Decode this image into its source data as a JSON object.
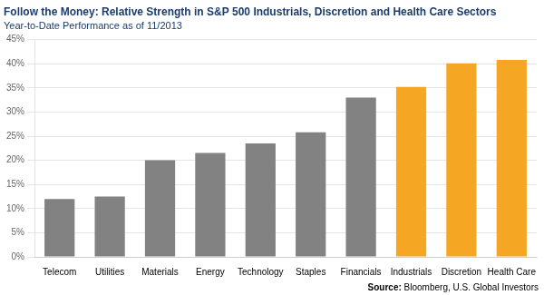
{
  "chart_data": {
    "type": "bar",
    "title": "Follow the Money: Relative Strength in S&P 500 Industrials, Discretion and Health Care Sectors",
    "subtitle": "Year-to-Date Performance as of 11/2013",
    "source": "Source: Bloomberg, U.S. Global Investors",
    "categories": [
      "Telecom",
      "Utilities",
      "Materials",
      "Energy",
      "Technology",
      "Staples",
      "Financials",
      "Industrials",
      "Discretion",
      "Health Care"
    ],
    "values": [
      12.0,
      12.5,
      20.0,
      21.5,
      23.5,
      25.8,
      33.0,
      35.2,
      40.1,
      40.8
    ],
    "colors": [
      "#828282",
      "#828282",
      "#828282",
      "#828282",
      "#828282",
      "#828282",
      "#828282",
      "#F5A623",
      "#F5A623",
      "#F5A623"
    ],
    "ylim": [
      0,
      45
    ],
    "yticks": [
      {
        "value": 0,
        "label": "0%"
      },
      {
        "value": 5,
        "label": "5%"
      },
      {
        "value": 10,
        "label": "10%"
      },
      {
        "value": 15,
        "label": "15%"
      },
      {
        "value": 20,
        "label": "20%"
      },
      {
        "value": 25,
        "label": "25%"
      },
      {
        "value": 30,
        "label": "30%"
      },
      {
        "value": 35,
        "label": "35%"
      },
      {
        "value": 40,
        "label": "40%"
      },
      {
        "value": 45,
        "label": "45%"
      }
    ],
    "grid": true
  }
}
